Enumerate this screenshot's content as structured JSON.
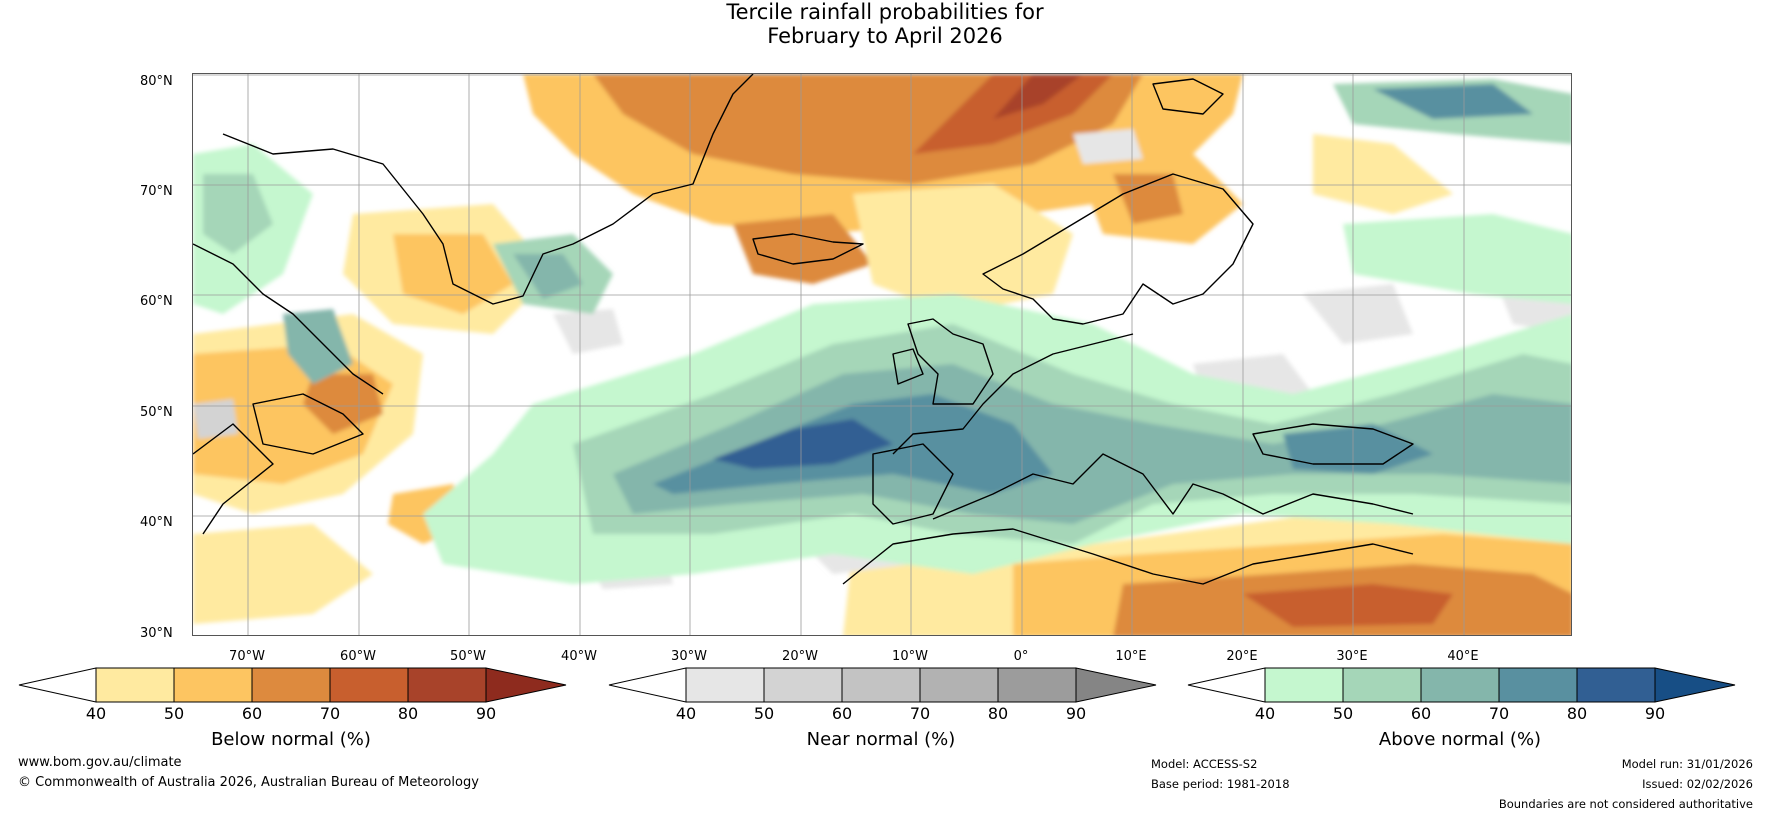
{
  "title": {
    "line1": "Tercile rainfall probabilities for",
    "line2": "February to April 2026"
  },
  "map": {
    "lat_labels": [
      "80°N",
      "70°N",
      "60°N",
      "50°N",
      "40°N",
      "30°N"
    ],
    "lon_labels": [
      "70°W",
      "60°W",
      "50°W",
      "40°W",
      "30°W",
      "20°W",
      "10°W",
      "0°",
      "10°E",
      "20°E",
      "30°E",
      "40°E"
    ]
  },
  "colorbars": [
    {
      "label": "Below normal (%)",
      "ticks": [
        "40",
        "50",
        "60",
        "70",
        "80",
        "90"
      ],
      "colors": [
        "#ffffff",
        "#ffeaa0",
        "#fdc561",
        "#dd8a3e",
        "#c85f2e",
        "#a8432a",
        "#8e2b1e"
      ]
    },
    {
      "label": "Near normal (%)",
      "ticks": [
        "40",
        "50",
        "60",
        "70",
        "80",
        "90"
      ],
      "colors": [
        "#ffffff",
        "#e6e6e6",
        "#d3d3d3",
        "#c3c3c3",
        "#b2b2b2",
        "#9c9c9c",
        "#858585"
      ]
    },
    {
      "label": "Above normal (%)",
      "ticks": [
        "40",
        "50",
        "60",
        "70",
        "80",
        "90"
      ],
      "colors": [
        "#ffffff",
        "#c5f7cf",
        "#a5d6b8",
        "#84b6ab",
        "#5990a0",
        "#315f93",
        "#174e85"
      ]
    }
  ],
  "footer": {
    "website": "www.bom.gov.au/climate",
    "copyright": "© Commonwealth of Australia 2026, Australian Bureau of Meteorology",
    "model": "Model: ACCESS-S2",
    "base_period": "Base period: 1981-2018",
    "model_run": "Model run: 31/01/2026",
    "issued": "Issued: 02/02/2026",
    "disclaimer": "Boundaries are not considered authoritative"
  }
}
